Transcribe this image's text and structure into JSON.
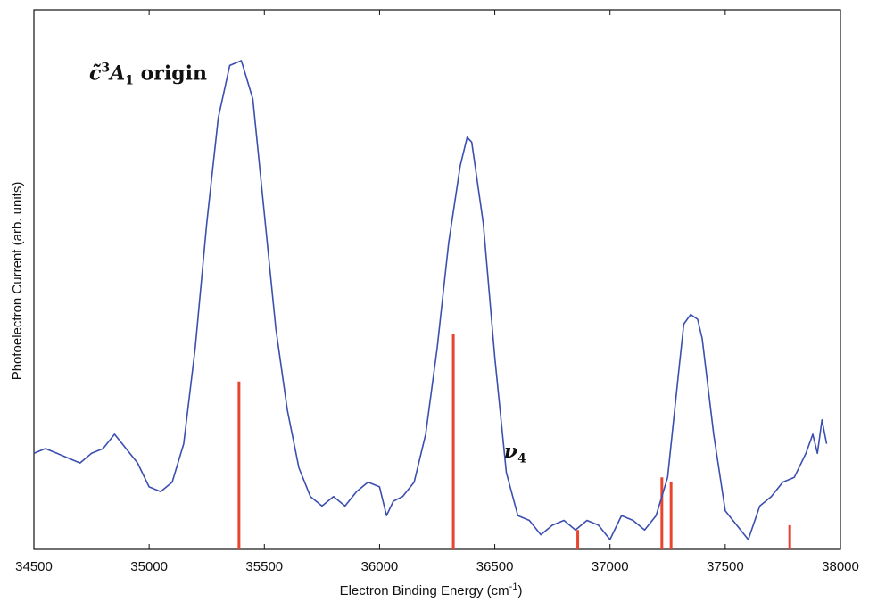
{
  "chart_data": {
    "type": "line",
    "title": "",
    "xlabel": "Electron Binding Energy (cm",
    "xlabel_sup": "-1",
    "xlabel_end": ")",
    "ylabel": "Photoelectron Current (arb. units)",
    "xlim": [
      34500,
      38000
    ],
    "ylim": [
      0,
      1.0
    ],
    "xticks": [
      34500,
      35000,
      35500,
      36000,
      36500,
      37000,
      37500,
      38000
    ],
    "grid": false,
    "series": [
      {
        "color": "#3b4fb0",
        "x": [
          34500,
          34550,
          34600,
          34650,
          34700,
          34750,
          34800,
          34850,
          34900,
          34950,
          35000,
          35050,
          35100,
          35150,
          35200,
          35250,
          35300,
          35350,
          35400,
          35450,
          35500,
          35550,
          35600,
          35650,
          35700,
          35750,
          35800,
          35850,
          35900,
          35950,
          36000,
          36030,
          36060,
          36100,
          36150,
          36200,
          36250,
          36300,
          36350,
          36380,
          36400,
          36450,
          36500,
          36550,
          36600,
          36650,
          36700,
          36750,
          36800,
          36850,
          36900,
          36950,
          37000,
          37050,
          37100,
          37150,
          37200,
          37250,
          37300,
          37320,
          37350,
          37380,
          37400,
          37450,
          37500,
          37550,
          37600,
          37650,
          37700,
          37750,
          37800,
          37850,
          37880,
          37900,
          37920,
          37940
        ],
        "y": [
          0.18,
          0.19,
          0.18,
          0.17,
          0.16,
          0.18,
          0.19,
          0.22,
          0.19,
          0.16,
          0.11,
          0.1,
          0.12,
          0.2,
          0.4,
          0.66,
          0.88,
          0.99,
          1.0,
          0.92,
          0.68,
          0.44,
          0.27,
          0.15,
          0.09,
          0.07,
          0.09,
          0.07,
          0.1,
          0.12,
          0.11,
          0.05,
          0.08,
          0.09,
          0.12,
          0.22,
          0.4,
          0.62,
          0.78,
          0.84,
          0.83,
          0.66,
          0.38,
          0.14,
          0.05,
          0.04,
          0.01,
          0.03,
          0.04,
          0.02,
          0.04,
          0.03,
          0.0,
          0.05,
          0.04,
          0.02,
          0.05,
          0.13,
          0.36,
          0.45,
          0.47,
          0.46,
          0.42,
          0.22,
          0.06,
          0.03,
          0.0,
          0.07,
          0.09,
          0.12,
          0.13,
          0.18,
          0.22,
          0.18,
          0.25,
          0.2
        ]
      }
    ],
    "stick_color": "#e8442f",
    "sticks": [
      {
        "x": 35390,
        "y": 0.33
      },
      {
        "x": 36320,
        "y": 0.43
      },
      {
        "x": 36860,
        "y": 0.02
      },
      {
        "x": 37225,
        "y": 0.13
      },
      {
        "x": 37265,
        "y": 0.12
      },
      {
        "x": 37780,
        "y": 0.03
      }
    ],
    "annotations": [
      {
        "id": "origin",
        "text_symbol": "c̃",
        "text_sup": "3",
        "text_main": "A",
        "text_sub": "1",
        "text_rest": " origin",
        "x": 34740,
        "y": 0.96
      },
      {
        "id": "nu4",
        "text_main": "ν",
        "text_sub": "4",
        "x": 36540,
        "y": 0.17
      }
    ]
  }
}
